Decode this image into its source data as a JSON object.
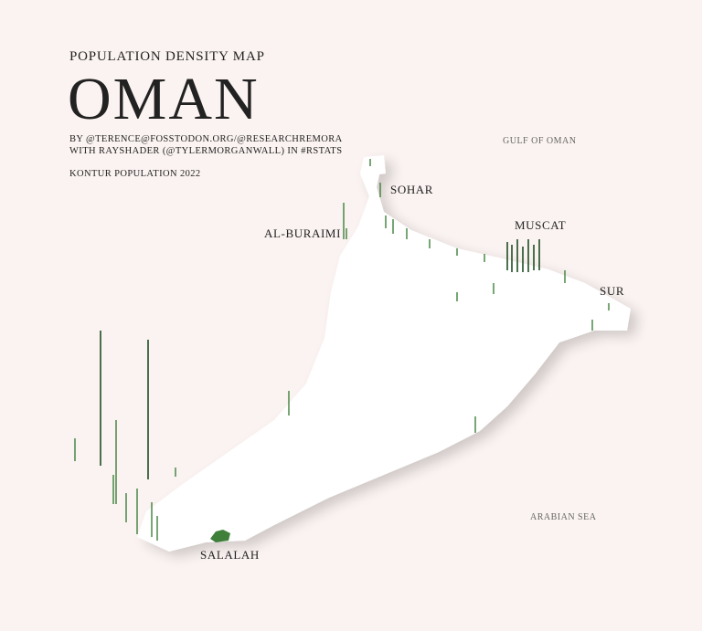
{
  "header": {
    "subtitle": "POPULATION DENSITY MAP",
    "title": "OMAN",
    "credits": [
      "BY @TERENCE@FOSSTODON.ORG/@RESEARCHREMORA",
      "WITH RAYSHADER (@TYLERMORGANWALL) IN #RSTATS"
    ],
    "source": "KONTUR POPULATION 2022"
  },
  "labels": {
    "seas": [
      "GULF OF OMAN",
      "ARABIAN SEA"
    ],
    "cities": [
      "SOHAR",
      "AL-BURAIMI",
      "MUSCAT",
      "SUR",
      "SALALAH"
    ]
  }
}
